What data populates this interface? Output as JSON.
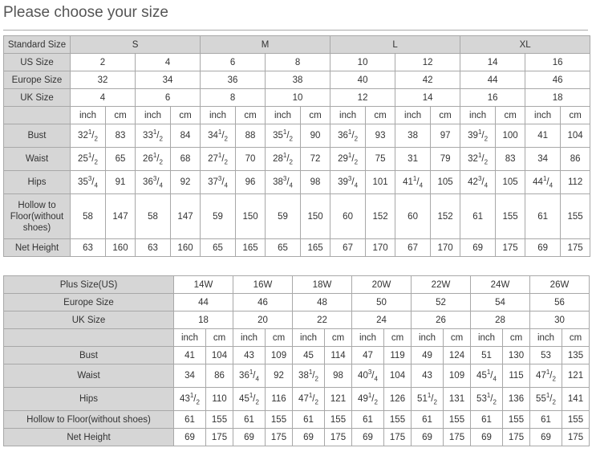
{
  "title": "Please choose your size",
  "colors": {
    "header_bg": "#d6d6d6",
    "border": "#a8a8a8",
    "text": "#333333"
  },
  "standard_table": {
    "header": {
      "label": "Standard Size",
      "groups": [
        "S",
        "M",
        "L",
        "XL"
      ]
    },
    "size_rows": [
      {
        "label": "US Size",
        "values": [
          "2",
          "4",
          "6",
          "8",
          "10",
          "12",
          "14",
          "16"
        ]
      },
      {
        "label": "Europe Size",
        "values": [
          "32",
          "34",
          "36",
          "38",
          "40",
          "42",
          "44",
          "46"
        ]
      },
      {
        "label": "UK Size",
        "values": [
          "4",
          "6",
          "8",
          "10",
          "12",
          "14",
          "16",
          "18"
        ]
      }
    ],
    "units": [
      "inch",
      "cm"
    ],
    "measure_rows": [
      {
        "label": "Bust",
        "values": [
          "32 1/2",
          "83",
          "33 1/2",
          "84",
          "34 1/2",
          "88",
          "35 1/2",
          "90",
          "36 1/2",
          "93",
          "38",
          "97",
          "39 1/2",
          "100",
          "41",
          "104"
        ]
      },
      {
        "label": "Waist",
        "values": [
          "25 1/2",
          "65",
          "26 1/2",
          "68",
          "27 1/2",
          "70",
          "28 1/2",
          "72",
          "29 1/2",
          "75",
          "31",
          "79",
          "32 1/2",
          "83",
          "34",
          "86"
        ]
      },
      {
        "label": "Hips",
        "values": [
          "35 3/4",
          "91",
          "36 3/4",
          "92",
          "37 3/4",
          "96",
          "38 3/4",
          "98",
          "39 3/4",
          "101",
          "41 1/4",
          "105",
          "42 3/4",
          "105",
          "44 1/4",
          "112"
        ]
      },
      {
        "label": "Hollow to Floor(without shoes)",
        "values": [
          "58",
          "147",
          "58",
          "147",
          "59",
          "150",
          "59",
          "150",
          "60",
          "152",
          "60",
          "152",
          "61",
          "155",
          "61",
          "155"
        ]
      },
      {
        "label": "Net Height",
        "values": [
          "63",
          "160",
          "63",
          "160",
          "65",
          "165",
          "65",
          "165",
          "67",
          "170",
          "67",
          "170",
          "69",
          "175",
          "69",
          "175"
        ]
      }
    ]
  },
  "plus_table": {
    "size_rows": [
      {
        "label": "Plus Size(US)",
        "values": [
          "14W",
          "16W",
          "18W",
          "20W",
          "22W",
          "24W",
          "26W"
        ]
      },
      {
        "label": "Europe Size",
        "values": [
          "44",
          "46",
          "48",
          "50",
          "52",
          "54",
          "56"
        ]
      },
      {
        "label": "UK Size",
        "values": [
          "18",
          "20",
          "22",
          "24",
          "26",
          "28",
          "30"
        ]
      }
    ],
    "units": [
      "inch",
      "cm"
    ],
    "measure_rows": [
      {
        "label": "Bust",
        "values": [
          "41",
          "104",
          "43",
          "109",
          "45",
          "114",
          "47",
          "119",
          "49",
          "124",
          "51",
          "130",
          "53",
          "135"
        ]
      },
      {
        "label": "Waist",
        "values": [
          "34",
          "86",
          "36 1/4",
          "92",
          "38 1/2",
          "98",
          "40 3/4",
          "104",
          "43",
          "109",
          "45 1/4",
          "115",
          "47 1/2",
          "121"
        ]
      },
      {
        "label": "Hips",
        "values": [
          "43 1/2",
          "110",
          "45 1/2",
          "116",
          "47 1/2",
          "121",
          "49 1/2",
          "126",
          "51 1/2",
          "131",
          "53 1/2",
          "136",
          "55 1/2",
          "141"
        ]
      },
      {
        "label": "Hollow to Floor(without shoes)",
        "values": [
          "61",
          "155",
          "61",
          "155",
          "61",
          "155",
          "61",
          "155",
          "61",
          "155",
          "61",
          "155",
          "61",
          "155"
        ]
      },
      {
        "label": "Net Height",
        "values": [
          "69",
          "175",
          "69",
          "175",
          "69",
          "175",
          "69",
          "175",
          "69",
          "175",
          "69",
          "175",
          "69",
          "175"
        ]
      }
    ]
  }
}
